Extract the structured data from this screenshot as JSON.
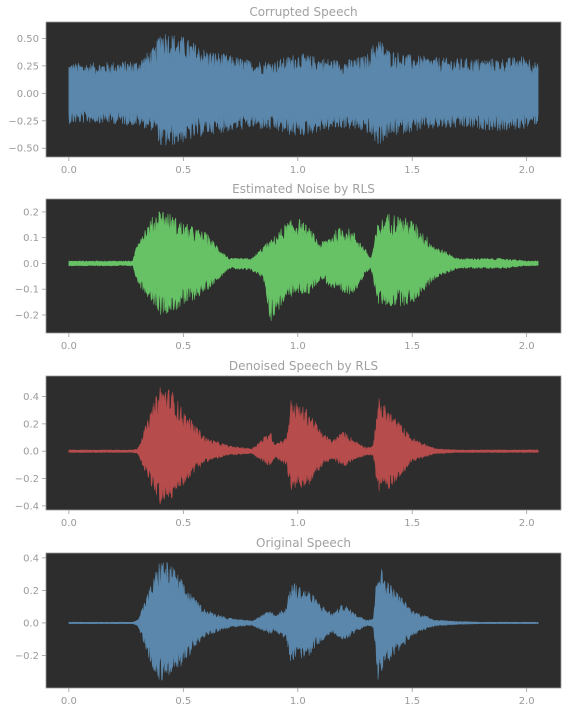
{
  "chart_data": [
    {
      "type": "line",
      "title": "Corrupted Speech",
      "color": "#5a87ab",
      "xlim": [
        -0.1,
        2.15
      ],
      "ylim": [
        -0.58,
        0.65
      ],
      "xticks": [
        0.0,
        0.5,
        1.0,
        1.5,
        2.0
      ],
      "xtick_labels": [
        "0.0",
        "0.5",
        "1.0",
        "1.5",
        "2.0"
      ],
      "yticks": [
        -0.5,
        -0.25,
        0.0,
        0.25,
        0.5
      ],
      "ytick_labels": [
        "−0.50",
        "−0.25",
        "0.00",
        "0.25",
        "0.50"
      ],
      "x": [
        0.0,
        0.1,
        0.2,
        0.3,
        0.38,
        0.4,
        0.45,
        0.5,
        0.6,
        0.7,
        0.8,
        0.9,
        1.0,
        1.1,
        1.2,
        1.3,
        1.35,
        1.4,
        1.5,
        1.6,
        1.7,
        1.8,
        1.9,
        2.0,
        2.05
      ],
      "upper": [
        0.28,
        0.28,
        0.29,
        0.3,
        0.44,
        0.6,
        0.55,
        0.52,
        0.4,
        0.35,
        0.3,
        0.3,
        0.37,
        0.33,
        0.3,
        0.35,
        0.52,
        0.4,
        0.35,
        0.33,
        0.32,
        0.32,
        0.32,
        0.35,
        0.27
      ],
      "lower": [
        -0.28,
        -0.27,
        -0.28,
        -0.3,
        -0.35,
        -0.5,
        -0.48,
        -0.45,
        -0.38,
        -0.35,
        -0.32,
        -0.35,
        -0.4,
        -0.35,
        -0.32,
        -0.36,
        -0.48,
        -0.4,
        -0.35,
        -0.33,
        -0.32,
        -0.33,
        -0.35,
        -0.32,
        -0.28
      ]
    },
    {
      "type": "line",
      "title": "Estimated Noise by RLS",
      "color": "#67c266",
      "xlim": [
        -0.1,
        2.15
      ],
      "ylim": [
        -0.27,
        0.25
      ],
      "xticks": [
        0.0,
        0.5,
        1.0,
        1.5,
        2.0
      ],
      "xtick_labels": [
        "0.0",
        "0.5",
        "1.0",
        "1.5",
        "2.0"
      ],
      "yticks": [
        -0.2,
        -0.1,
        0.0,
        0.1,
        0.2
      ],
      "ytick_labels": [
        "−0.2",
        "−0.1",
        "0.0",
        "0.1",
        "0.2"
      ],
      "x": [
        0.0,
        0.28,
        0.3,
        0.38,
        0.4,
        0.45,
        0.5,
        0.55,
        0.6,
        0.7,
        0.8,
        0.85,
        0.88,
        0.95,
        1.0,
        1.05,
        1.1,
        1.15,
        1.2,
        1.25,
        1.3,
        1.32,
        1.35,
        1.4,
        1.5,
        1.6,
        1.7,
        1.8,
        1.9,
        2.0,
        2.05
      ],
      "upper": [
        0.01,
        0.01,
        0.1,
        0.2,
        0.22,
        0.19,
        0.16,
        0.14,
        0.12,
        0.02,
        0.02,
        0.07,
        0.09,
        0.16,
        0.18,
        0.14,
        0.08,
        0.12,
        0.15,
        0.12,
        0.05,
        0.02,
        0.16,
        0.2,
        0.17,
        0.07,
        0.02,
        0.02,
        0.02,
        0.01,
        0.01
      ],
      "lower": [
        -0.01,
        -0.01,
        -0.08,
        -0.17,
        -0.2,
        -0.19,
        -0.17,
        -0.14,
        -0.11,
        -0.02,
        -0.03,
        -0.06,
        -0.23,
        -0.14,
        -0.12,
        -0.12,
        -0.06,
        -0.1,
        -0.13,
        -0.11,
        -0.04,
        -0.02,
        -0.16,
        -0.17,
        -0.16,
        -0.06,
        -0.02,
        -0.02,
        -0.02,
        -0.01,
        -0.01
      ]
    },
    {
      "type": "line",
      "title": "Denoised Speech by RLS",
      "color": "#b64c4c",
      "xlim": [
        -0.1,
        2.15
      ],
      "ylim": [
        -0.43,
        0.55
      ],
      "xticks": [
        0.0,
        0.5,
        1.0,
        1.5,
        2.0
      ],
      "xtick_labels": [
        "0.0",
        "0.5",
        "1.0",
        "1.5",
        "2.0"
      ],
      "yticks": [
        -0.4,
        -0.2,
        0.0,
        0.2,
        0.4
      ],
      "ytick_labels": [
        "−0.4",
        "−0.2",
        "0.0",
        "0.2",
        "0.4"
      ],
      "x": [
        0.0,
        0.28,
        0.3,
        0.37,
        0.4,
        0.45,
        0.5,
        0.55,
        0.6,
        0.7,
        0.8,
        0.88,
        0.9,
        0.95,
        0.97,
        1.05,
        1.1,
        1.15,
        1.2,
        1.25,
        1.3,
        1.33,
        1.35,
        1.4,
        1.5,
        1.6,
        1.7,
        1.8,
        1.9,
        2.0,
        2.05
      ],
      "upper": [
        0.01,
        0.01,
        0.02,
        0.35,
        0.5,
        0.45,
        0.3,
        0.2,
        0.1,
        0.04,
        0.02,
        0.15,
        0.06,
        0.1,
        0.38,
        0.3,
        0.15,
        0.08,
        0.15,
        0.08,
        0.03,
        0.04,
        0.4,
        0.3,
        0.1,
        0.02,
        0.01,
        0.01,
        0.01,
        0.01,
        0.01
      ],
      "lower": [
        -0.01,
        -0.01,
        -0.02,
        -0.3,
        -0.4,
        -0.35,
        -0.25,
        -0.15,
        -0.08,
        -0.03,
        -0.02,
        -0.12,
        -0.05,
        -0.1,
        -0.3,
        -0.25,
        -0.12,
        -0.06,
        -0.12,
        -0.06,
        -0.03,
        -0.03,
        -0.3,
        -0.28,
        -0.08,
        -0.02,
        -0.01,
        -0.01,
        -0.01,
        -0.01,
        -0.01
      ]
    },
    {
      "type": "line",
      "title": "Original Speech",
      "color": "#5a87ab",
      "xlim": [
        -0.1,
        2.15
      ],
      "ylim": [
        -0.4,
        0.43
      ],
      "xticks": [
        0.0,
        0.5,
        1.0,
        1.5,
        2.0
      ],
      "xtick_labels": [
        "0.0",
        "0.5",
        "1.0",
        "1.5",
        "2.0"
      ],
      "yticks": [
        -0.2,
        0.0,
        0.2,
        0.4
      ],
      "ytick_labels": [
        "−0.2",
        "0.0",
        "0.2",
        "0.4"
      ],
      "x": [
        0.0,
        0.28,
        0.3,
        0.37,
        0.4,
        0.45,
        0.5,
        0.55,
        0.6,
        0.7,
        0.8,
        0.88,
        0.9,
        0.95,
        0.97,
        1.05,
        1.1,
        1.15,
        1.2,
        1.25,
        1.3,
        1.33,
        1.35,
        1.4,
        1.5,
        1.6,
        1.7,
        1.8,
        1.9,
        2.0,
        2.05
      ],
      "upper": [
        0.005,
        0.005,
        0.02,
        0.28,
        0.4,
        0.36,
        0.25,
        0.15,
        0.08,
        0.03,
        0.015,
        0.08,
        0.05,
        0.1,
        0.26,
        0.2,
        0.12,
        0.06,
        0.12,
        0.06,
        0.02,
        0.03,
        0.38,
        0.25,
        0.08,
        0.02,
        0.01,
        0.005,
        0.005,
        0.005,
        0.005
      ],
      "lower": [
        -0.005,
        -0.005,
        -0.02,
        -0.3,
        -0.36,
        -0.33,
        -0.25,
        -0.16,
        -0.08,
        -0.03,
        -0.015,
        -0.07,
        -0.05,
        -0.1,
        -0.25,
        -0.2,
        -0.12,
        -0.06,
        -0.12,
        -0.06,
        -0.02,
        -0.03,
        -0.35,
        -0.25,
        -0.08,
        -0.02,
        -0.01,
        -0.005,
        -0.005,
        -0.005,
        -0.005
      ]
    }
  ]
}
